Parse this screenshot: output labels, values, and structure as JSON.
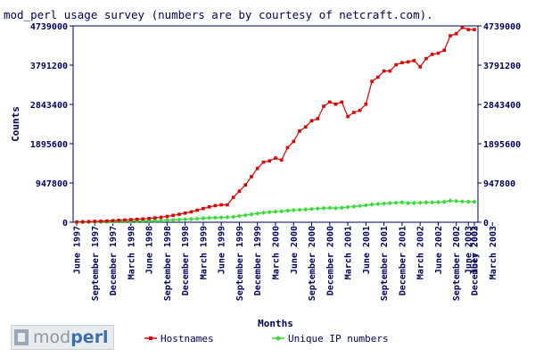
{
  "chart_data": {
    "type": "line",
    "title": "mod_perl usage survey (numbers are by courtesy of netcraft.com).",
    "xlabel": "Months",
    "ylabel": "Counts",
    "ylim": [
      0,
      4739000
    ],
    "yticks": [
      0,
      947800,
      1895600,
      2843400,
      3791200,
      4739000
    ],
    "yticks_right": true,
    "grid": false,
    "legend_position": "bottom",
    "x_tick_labels": [
      "June 1997",
      "September 1997",
      "December 1997",
      "March 1998",
      "June 1998",
      "September 1998",
      "December 1998",
      "March 1999",
      "June 1999",
      "September 1999",
      "December 1999",
      "March 2000",
      "June 2000",
      "September 2000",
      "December 2000",
      "March 2001",
      "June 2001",
      "September 2001",
      "December 2001",
      "March 2002",
      "June 2002",
      "September 2002",
      "December 2002",
      "March 2003",
      "June 2003",
      "July 2003"
    ],
    "series": [
      {
        "name": "Hostnames",
        "color": "#dd0000",
        "marker": "square",
        "values": [
          5000,
          10000,
          15000,
          20000,
          24000,
          30000,
          38000,
          48000,
          55000,
          62000,
          70000,
          80000,
          90000,
          105000,
          120000,
          140000,
          165000,
          190000,
          220000,
          250000,
          290000,
          330000,
          370000,
          400000,
          420000,
          420000,
          600000,
          750000,
          900000,
          1100000,
          1300000,
          1450000,
          1480000,
          1550000,
          1500000,
          1800000,
          1950000,
          2200000,
          2300000,
          2450000,
          2500000,
          2800000,
          2900000,
          2850000,
          2900000,
          2550000,
          2650000,
          2700000,
          2850000,
          3400000,
          3500000,
          3650000,
          3650000,
          3800000,
          3850000,
          3870000,
          3900000,
          3750000,
          3950000,
          4050000,
          4080000,
          4150000,
          4500000,
          4550000,
          4700000,
          4650000,
          4650000
        ]
      },
      {
        "name": "Unique IP numbers",
        "color": "#33dd33",
        "marker": "diamond",
        "values": [
          2000,
          4000,
          6000,
          8000,
          10000,
          12000,
          14000,
          17000,
          20000,
          23000,
          26000,
          30000,
          34000,
          38000,
          42000,
          48000,
          55000,
          62000,
          70000,
          78000,
          86000,
          95000,
          105000,
          110000,
          115000,
          120000,
          130000,
          150000,
          170000,
          190000,
          210000,
          230000,
          245000,
          255000,
          265000,
          280000,
          290000,
          300000,
          310000,
          320000,
          330000,
          340000,
          345000,
          340000,
          350000,
          365000,
          380000,
          395000,
          410000,
          430000,
          440000,
          450000,
          460000,
          470000,
          480000,
          460000,
          465000,
          470000,
          480000,
          480000,
          485000,
          490000,
          520000,
          510000,
          500000,
          495000,
          495000
        ]
      }
    ]
  },
  "logo": {
    "part1": "mod",
    "part2": "perl"
  }
}
